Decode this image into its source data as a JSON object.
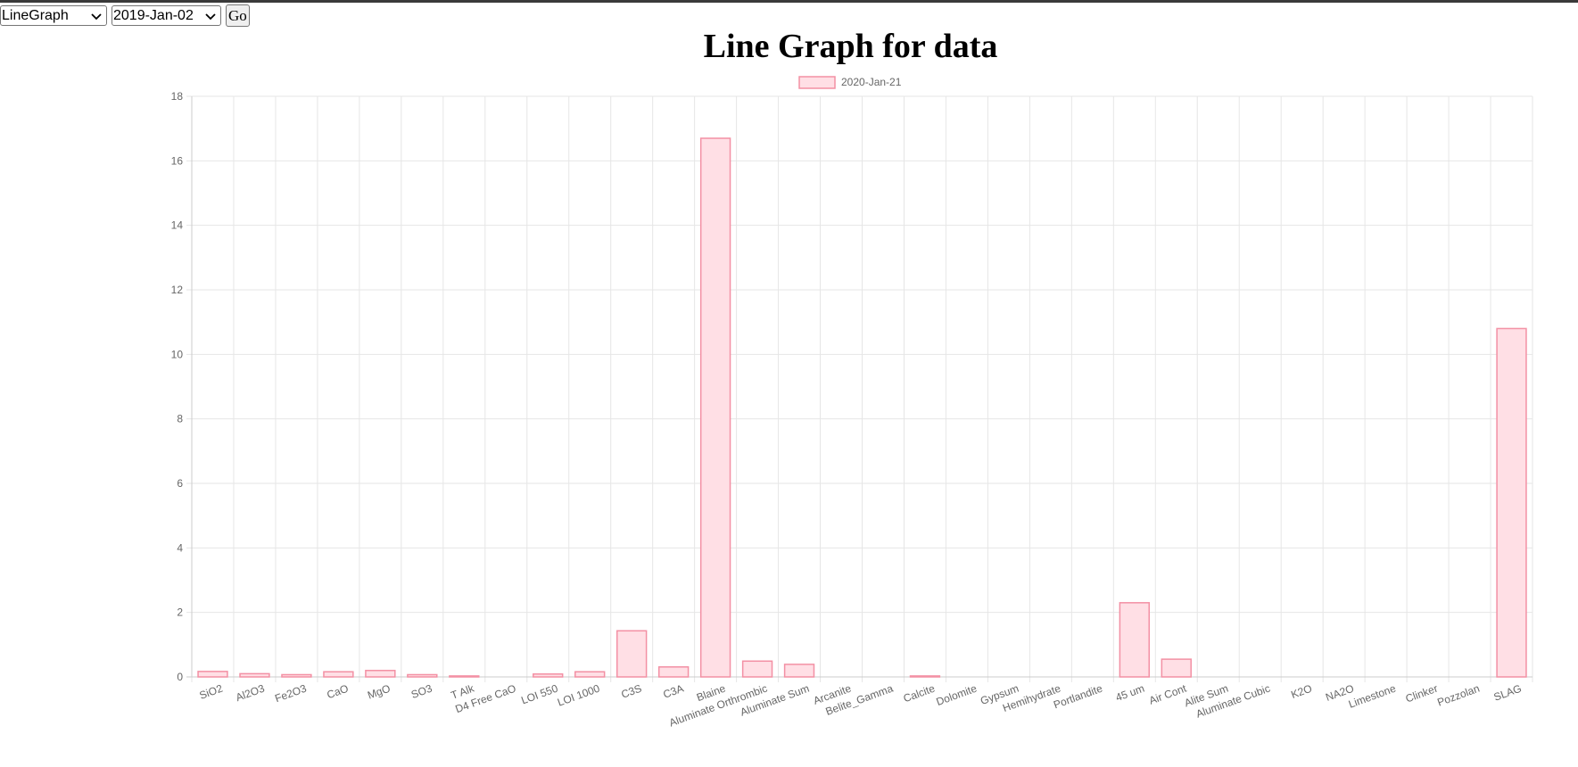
{
  "controls": {
    "graph_type": "LineGraph",
    "date": "2019-Jan-02",
    "go_label": "Go"
  },
  "colors": {
    "bar_fill": "#ffdfe5",
    "bar_stroke": "#f390a4",
    "grid": "#e6e6e6",
    "tick_text": "#666666"
  },
  "chart_data": {
    "type": "bar",
    "title": "Line Graph for data",
    "legend_position": "top",
    "grid": true,
    "ylim": [
      0,
      18
    ],
    "y_ticks": [
      0,
      2,
      4,
      6,
      8,
      10,
      12,
      14,
      16,
      18
    ],
    "categories": [
      "SiO2",
      "Al2O3",
      "Fe2O3",
      "CaO",
      "MgO",
      "SO3",
      "T Alk",
      "D4 Free CaO",
      "LOI 550",
      "LOI 1000",
      "C3S",
      "C3A",
      "Blaine",
      "Aluminate Orthrombic",
      "Aluminate Sum",
      "Arcanite",
      "Belite_Gamma",
      "Calcite",
      "Dolomite",
      "Gypsum",
      "Hemihydrate",
      "Portlandite",
      "45 um",
      "Air Cont",
      "Alite Sum",
      "Aluminate Cubic",
      "K2O",
      "NA2O",
      "Limestone",
      "Clinker",
      "Pozzolan",
      "SLAG"
    ],
    "series": [
      {
        "name": "2020-Jan-21",
        "values": [
          0.17,
          0.1,
          0.07,
          0.16,
          0.2,
          0.07,
          0.03,
          0,
          0.09,
          0.16,
          1.43,
          0.31,
          16.7,
          0.49,
          0.39,
          0,
          0,
          0.03,
          0,
          0,
          0,
          0,
          2.3,
          0.55,
          0,
          0,
          0,
          0,
          0,
          0,
          0,
          10.8
        ]
      }
    ]
  }
}
